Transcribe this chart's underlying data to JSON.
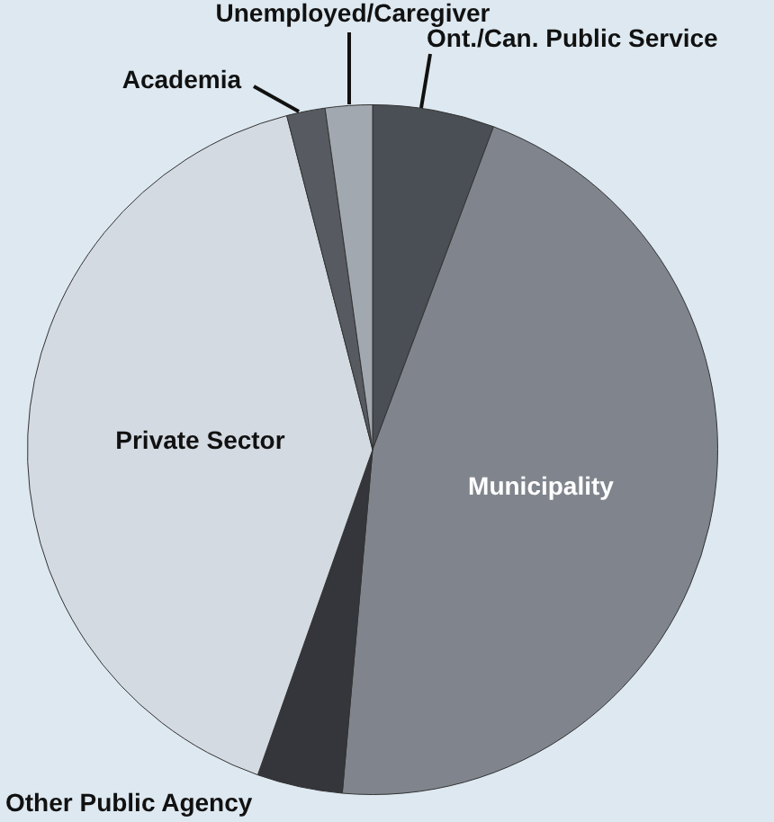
{
  "chart_data": {
    "type": "pie",
    "categories": [
      "Ont./Can. Public Service",
      "Municipality",
      "Other Public Agency",
      "Private Sector",
      "Academia",
      "Unemployed/Caregiver"
    ],
    "values": [
      5.7,
      45.7,
      4,
      40.6,
      1.8,
      2.2
    ],
    "colors": [
      "#4a4e55",
      "#80858d",
      "#34363b",
      "#d3dae2",
      "#575b61",
      "#a2a8b0"
    ],
    "legend": false
  }
}
